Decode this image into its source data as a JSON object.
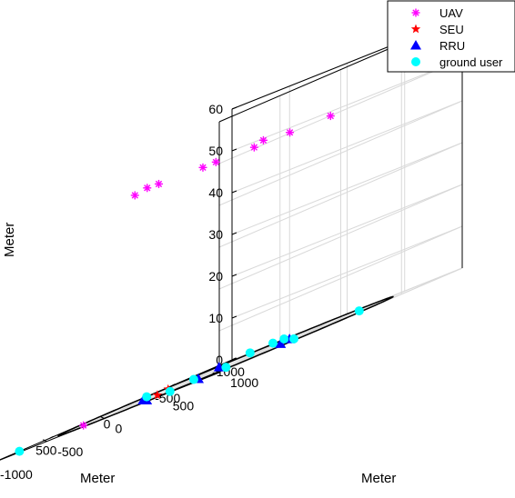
{
  "chart_data": {
    "type": "scatter",
    "dimensions": 3,
    "xlabel": "Meter",
    "ylabel": "Meter",
    "zlabel": "Meter",
    "xlim": [
      -1000,
      1000
    ],
    "ylim": [
      -1000,
      1000
    ],
    "zlim": [
      0,
      60
    ],
    "xticks": [
      "-1000",
      "-500",
      "0",
      "500",
      "1000"
    ],
    "yticks": [
      "-1000",
      "-500",
      "0",
      "500",
      "1000"
    ],
    "zticks": [
      "0",
      "10",
      "20",
      "30",
      "40",
      "50",
      "60"
    ],
    "grid": true,
    "box": true,
    "legend_placement": "top-right",
    "circle": {
      "center": [
        0,
        0
      ],
      "radius": 1000,
      "z": 0,
      "color": "#000000"
    },
    "series": [
      {
        "name": "UAV",
        "marker": "asterisk",
        "color": "#FF00FF",
        "points": [
          {
            "x": -500,
            "y": -200,
            "z": 50
          },
          {
            "x": 20,
            "y": -560,
            "z": 50
          },
          {
            "x": 260,
            "y": 190,
            "z": 50
          },
          {
            "x": 400,
            "y": 670,
            "z": 50
          },
          {
            "x": 220,
            "y": 790,
            "z": 50
          },
          {
            "x": 320,
            "y": 140,
            "z": 50
          },
          {
            "x": -150,
            "y": -840,
            "z": 50
          },
          {
            "x": 510,
            "y": -250,
            "z": 50
          },
          {
            "x": 150,
            "y": 1070,
            "z": 50
          },
          {
            "x": 650,
            "y": -550,
            "z": 0
          }
        ]
      },
      {
        "name": "SEU",
        "marker": "star",
        "color": "#FF0000",
        "points": [
          {
            "x": -10,
            "y": -510,
            "z": 0
          },
          {
            "x": 430,
            "y": -140,
            "z": 0
          }
        ]
      },
      {
        "name": "RRU",
        "marker": "triangle",
        "color": "#0000FF",
        "points": [
          {
            "x": -450,
            "y": 80,
            "z": 0
          },
          {
            "x": -420,
            "y": -500,
            "z": 0
          },
          {
            "x": -120,
            "y": 350,
            "z": 0
          },
          {
            "x": 300,
            "y": -400,
            "z": 0
          },
          {
            "x": 490,
            "y": 280,
            "z": 0
          },
          {
            "x": 660,
            "y": 10,
            "z": 0
          }
        ]
      },
      {
        "name": "ground user",
        "marker": "circle",
        "color": "#00FFFF",
        "points": [
          {
            "x": -550,
            "y": 580,
            "z": 0
          },
          {
            "x": -250,
            "y": -950,
            "z": 0
          },
          {
            "x": 130,
            "y": -140,
            "z": 0
          },
          {
            "x": 750,
            "y": -1000,
            "z": 0
          },
          {
            "x": 790,
            "y": 350,
            "z": 0
          },
          {
            "x": 310,
            "y": 330,
            "z": 0
          },
          {
            "x": -50,
            "y": 540,
            "z": 0
          },
          {
            "x": -1040,
            "y": -590,
            "z": 0
          },
          {
            "x": -1100,
            "y": -750,
            "z": 0
          },
          {
            "x": -940,
            "y": -780,
            "z": 0
          }
        ]
      }
    ]
  }
}
